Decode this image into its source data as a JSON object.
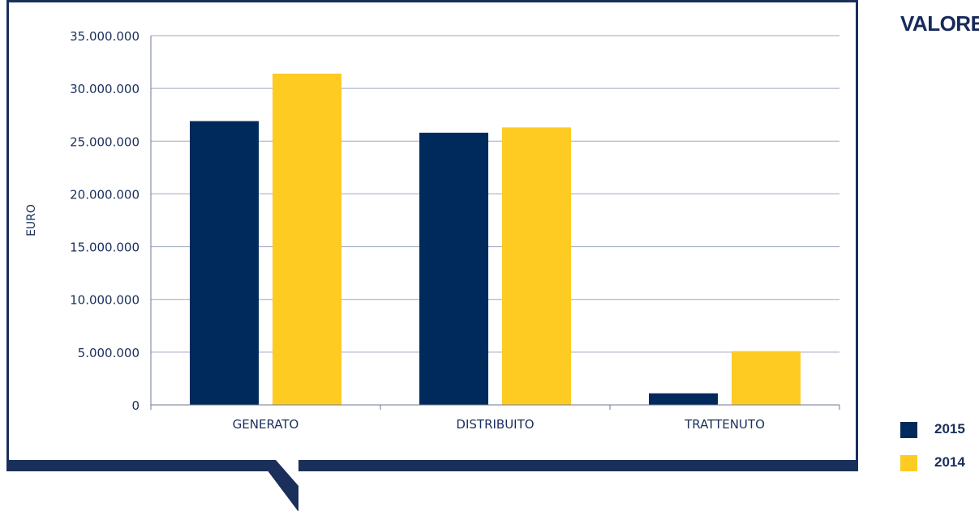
{
  "side_title": "VALORE E",
  "legend": [
    {
      "label": "2015",
      "color": "#002a5c"
    },
    {
      "label": "2014",
      "color": "#fdcb22"
    }
  ],
  "colors": {
    "frame": "#1a2f5a",
    "grid": "#9fa7c0",
    "text": "#1a2f5a"
  },
  "chart_data": {
    "type": "bar",
    "title": "",
    "xlabel": "",
    "ylabel": "EURO",
    "categories": [
      "GENERATO",
      "DISTRIBUITO",
      "TRATTENUTO"
    ],
    "series": [
      {
        "name": "2015",
        "values": [
          26900000,
          25800000,
          1100000
        ],
        "color": "#002a5c"
      },
      {
        "name": "2014",
        "values": [
          31400000,
          26300000,
          5100000
        ],
        "color": "#fdcb22"
      }
    ],
    "ylim": [
      0,
      35000000
    ],
    "yticks": [
      "0",
      "5.000.000",
      "10.000.000",
      "15.000.000",
      "20.000.000",
      "25.000.000",
      "30.000.000",
      "35.000.000"
    ],
    "grid": true,
    "legend_position": "right-bottom"
  }
}
